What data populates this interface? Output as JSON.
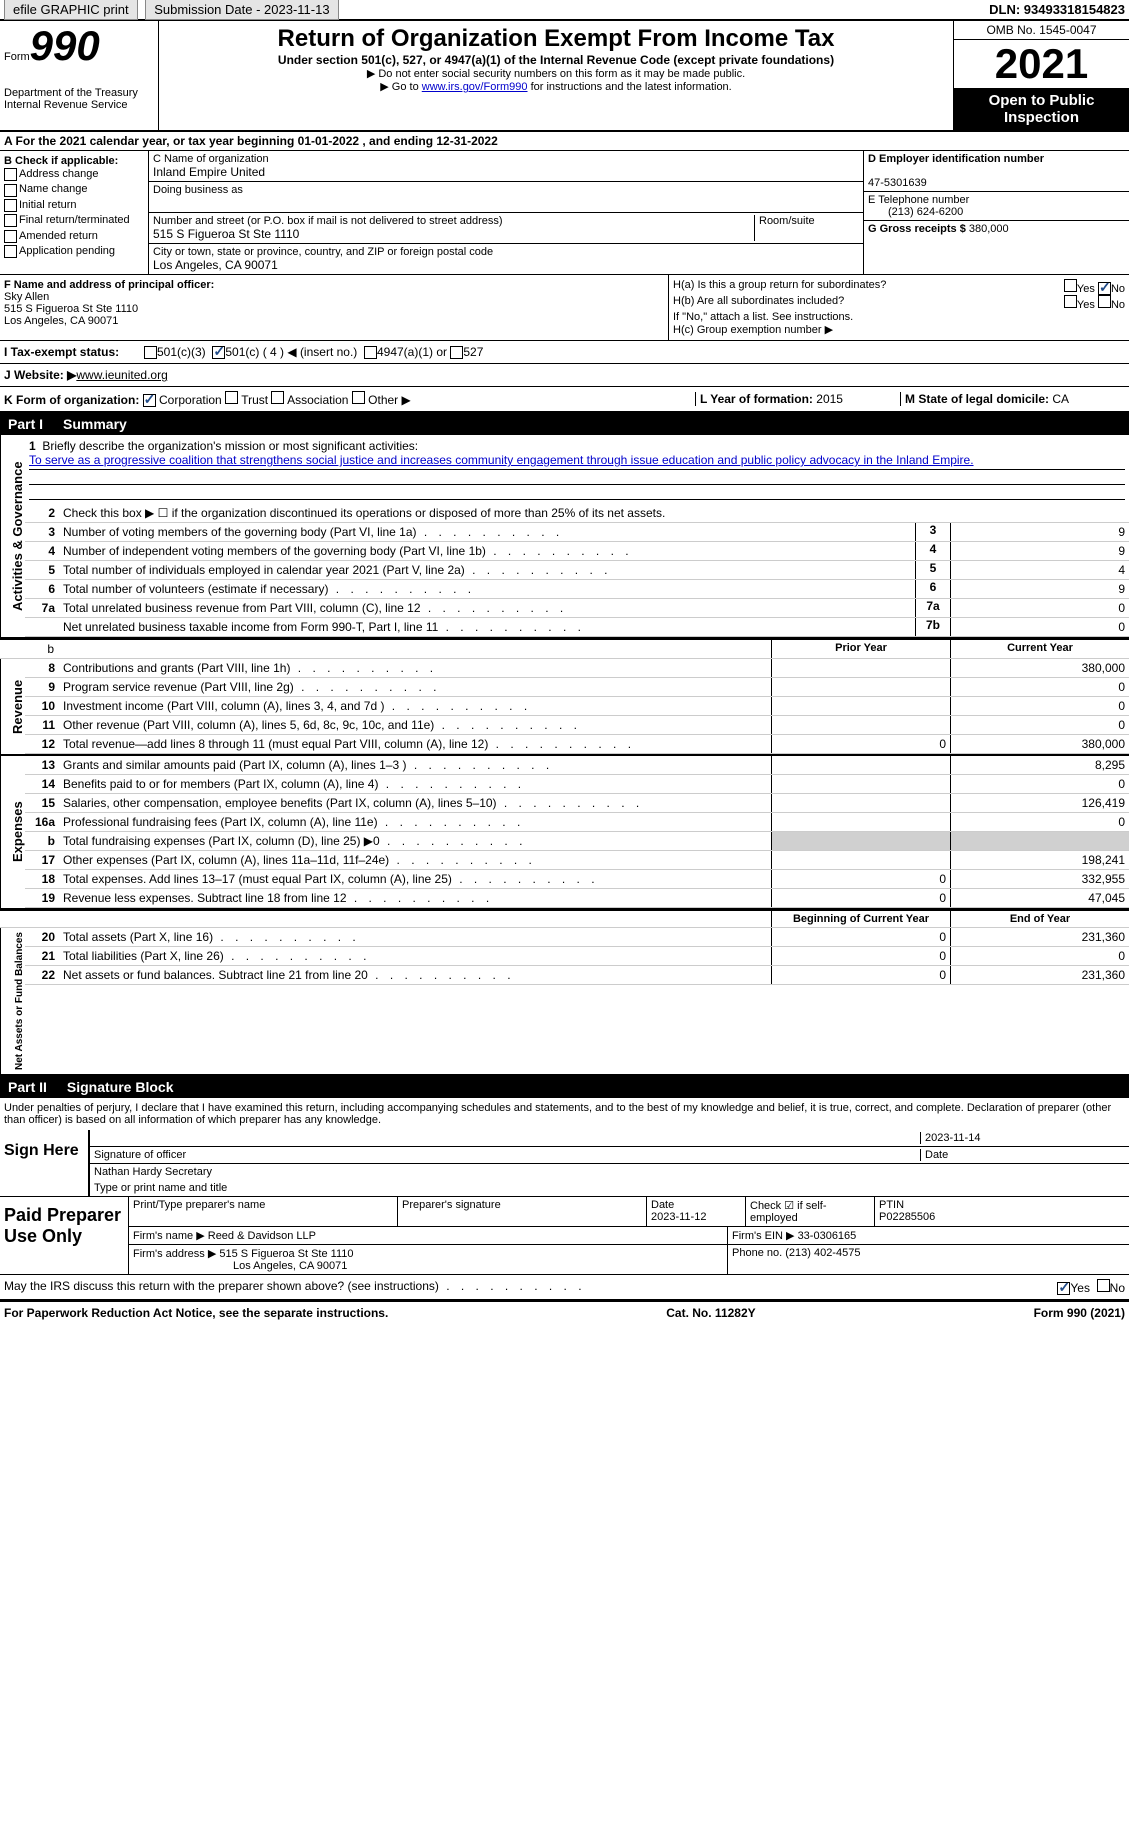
{
  "topbar": {
    "efile": "efile GRAPHIC print",
    "submission": "Submission Date - 2023-11-13",
    "dln": "DLN: 93493318154823"
  },
  "header": {
    "form_word": "Form",
    "form_number": "990",
    "dept": "Department of the Treasury",
    "irs": "Internal Revenue Service",
    "title": "Return of Organization Exempt From Income Tax",
    "subtitle": "Under section 501(c), 527, or 4947(a)(1) of the Internal Revenue Code (except private foundations)",
    "note1": "▶ Do not enter social security numbers on this form as it may be made public.",
    "note2_pre": "▶ Go to ",
    "note2_link": "www.irs.gov/Form990",
    "note2_post": " for instructions and the latest information.",
    "omb": "OMB No. 1545-0047",
    "year": "2021",
    "inspection": "Open to Public Inspection"
  },
  "line_a": "A For the 2021 calendar year, or tax year beginning 01-01-2022   , and ending 12-31-2022",
  "section_b": {
    "header": "B Check if applicable:",
    "items": [
      "Address change",
      "Name change",
      "Initial return",
      "Final return/terminated",
      "Amended return",
      "Application pending"
    ]
  },
  "section_c": {
    "name_label": "C Name of organization",
    "name": "Inland Empire United",
    "dba_label": "Doing business as",
    "dba": "",
    "addr_label": "Number and street (or P.O. box if mail is not delivered to street address)",
    "room_label": "Room/suite",
    "addr": "515 S Figueroa St Ste 1110",
    "city_label": "City or town, state or province, country, and ZIP or foreign postal code",
    "city": "Los Angeles, CA  90071"
  },
  "section_d": {
    "ein_label": "D Employer identification number",
    "ein": "47-5301639",
    "phone_label": "E Telephone number",
    "phone": "(213) 624-6200",
    "gross_label": "G Gross receipts $",
    "gross": "380,000"
  },
  "section_f": {
    "label": "F Name and address of principal officer:",
    "name": "Sky Allen",
    "addr1": "515 S Figueroa St Ste 1110",
    "addr2": "Los Angeles, CA  90071"
  },
  "section_h": {
    "a": "H(a)  Is this a group return for subordinates?",
    "b": "H(b)  Are all subordinates included?",
    "b_note": "If \"No,\" attach a list. See instructions.",
    "c": "H(c)  Group exemption number ▶",
    "yes": "Yes",
    "no": "No"
  },
  "section_i": {
    "label": "I   Tax-exempt status:",
    "opt1": "501(c)(3)",
    "opt2": "501(c) ( 4 ) ◀ (insert no.)",
    "opt3": "4947(a)(1) or",
    "opt4": "527"
  },
  "section_j": {
    "label": "J  Website: ▶ ",
    "value": "www.ieunited.org"
  },
  "section_k": {
    "label": "K Form of organization:",
    "opts": [
      "Corporation",
      "Trust",
      "Association",
      "Other ▶"
    ],
    "l_label": "L Year of formation:",
    "l_val": "2015",
    "m_label": "M State of legal domicile:",
    "m_val": "CA"
  },
  "part1": {
    "header_num": "Part I",
    "header_title": "Summary",
    "side_gov": "Activities & Governance",
    "side_rev": "Revenue",
    "side_exp": "Expenses",
    "side_net": "Net Assets or Fund Balances",
    "l1_label": "Briefly describe the organization's mission or most significant activities:",
    "l1_text": "To serve as a progressive coalition that strengthens social justice and increases community engagement through issue education and public policy advocacy in the Inland Empire.",
    "l2": "Check this box ▶ ☐  if the organization discontinued its operations or disposed of more than 25% of its net assets.",
    "lines_single": [
      {
        "n": "3",
        "label": "Number of voting members of the governing body (Part VI, line 1a)",
        "box": "3",
        "val": "9"
      },
      {
        "n": "4",
        "label": "Number of independent voting members of the governing body (Part VI, line 1b)",
        "box": "4",
        "val": "9"
      },
      {
        "n": "5",
        "label": "Total number of individuals employed in calendar year 2021 (Part V, line 2a)",
        "box": "5",
        "val": "4"
      },
      {
        "n": "6",
        "label": "Total number of volunteers (estimate if necessary)",
        "box": "6",
        "val": "9"
      },
      {
        "n": "7a",
        "label": "Total unrelated business revenue from Part VIII, column (C), line 12",
        "box": "7a",
        "val": "0"
      },
      {
        "n": "",
        "label": "Net unrelated business taxable income from Form 990-T, Part I, line 11",
        "box": "7b",
        "val": "0"
      }
    ],
    "col_head_prior": "Prior Year",
    "col_head_current": "Current Year",
    "rev": [
      {
        "n": "8",
        "label": "Contributions and grants (Part VIII, line 1h)",
        "prior": "",
        "cur": "380,000"
      },
      {
        "n": "9",
        "label": "Program service revenue (Part VIII, line 2g)",
        "prior": "",
        "cur": "0"
      },
      {
        "n": "10",
        "label": "Investment income (Part VIII, column (A), lines 3, 4, and 7d )",
        "prior": "",
        "cur": "0"
      },
      {
        "n": "11",
        "label": "Other revenue (Part VIII, column (A), lines 5, 6d, 8c, 9c, 10c, and 11e)",
        "prior": "",
        "cur": "0"
      },
      {
        "n": "12",
        "label": "Total revenue—add lines 8 through 11 (must equal Part VIII, column (A), line 12)",
        "prior": "0",
        "cur": "380,000"
      }
    ],
    "exp": [
      {
        "n": "13",
        "label": "Grants and similar amounts paid (Part IX, column (A), lines 1–3 )",
        "prior": "",
        "cur": "8,295"
      },
      {
        "n": "14",
        "label": "Benefits paid to or for members (Part IX, column (A), line 4)",
        "prior": "",
        "cur": "0"
      },
      {
        "n": "15",
        "label": "Salaries, other compensation, employee benefits (Part IX, column (A), lines 5–10)",
        "prior": "",
        "cur": "126,419"
      },
      {
        "n": "16a",
        "label": "Professional fundraising fees (Part IX, column (A), line 11e)",
        "prior": "",
        "cur": "0"
      },
      {
        "n": "b",
        "label": "Total fundraising expenses (Part IX, column (D), line 25) ▶0",
        "prior": "shaded",
        "cur": "shaded"
      },
      {
        "n": "17",
        "label": "Other expenses (Part IX, column (A), lines 11a–11d, 11f–24e)",
        "prior": "",
        "cur": "198,241"
      },
      {
        "n": "18",
        "label": "Total expenses. Add lines 13–17 (must equal Part IX, column (A), line 25)",
        "prior": "0",
        "cur": "332,955"
      },
      {
        "n": "19",
        "label": "Revenue less expenses. Subtract line 18 from line 12",
        "prior": "0",
        "cur": "47,045"
      }
    ],
    "col_head_begin": "Beginning of Current Year",
    "col_head_end": "End of Year",
    "net": [
      {
        "n": "20",
        "label": "Total assets (Part X, line 16)",
        "prior": "0",
        "cur": "231,360"
      },
      {
        "n": "21",
        "label": "Total liabilities (Part X, line 26)",
        "prior": "0",
        "cur": "0"
      },
      {
        "n": "22",
        "label": "Net assets or fund balances. Subtract line 21 from line 20",
        "prior": "0",
        "cur": "231,360"
      }
    ]
  },
  "part2": {
    "header_num": "Part II",
    "header_title": "Signature Block",
    "declaration": "Under penalties of perjury, I declare that I have examined this return, including accompanying schedules and statements, and to the best of my knowledge and belief, it is true, correct, and complete. Declaration of preparer (other than officer) is based on all information of which preparer has any knowledge.",
    "sign_here": "Sign Here",
    "sig_label": "Signature of officer",
    "sig_date": "2023-11-14",
    "date_label": "Date",
    "name_title": "Nathan Hardy  Secretary",
    "name_title_label": "Type or print name and title",
    "paid": "Paid Preparer Use Only",
    "prep_name_label": "Print/Type preparer's name",
    "prep_sig_label": "Preparer's signature",
    "prep_date_label": "Date",
    "prep_date": "2023-11-12",
    "self_emp": "Check ☑ if self-employed",
    "ptin_label": "PTIN",
    "ptin": "P02285506",
    "firm_name_label": "Firm's name    ▶",
    "firm_name": "Reed & Davidson LLP",
    "firm_ein_label": "Firm's EIN ▶",
    "firm_ein": "33-0306165",
    "firm_addr_label": "Firm's address ▶",
    "firm_addr1": "515 S Figueroa St Ste 1110",
    "firm_addr2": "Los Angeles, CA  90071",
    "firm_phone_label": "Phone no.",
    "firm_phone": "(213) 402-4575",
    "discuss": "May the IRS discuss this return with the preparer shown above? (see instructions)",
    "yes": "Yes",
    "no": "No"
  },
  "footer": {
    "left": "For Paperwork Reduction Act Notice, see the separate instructions.",
    "center": "Cat. No. 11282Y",
    "right": "Form 990 (2021)"
  }
}
